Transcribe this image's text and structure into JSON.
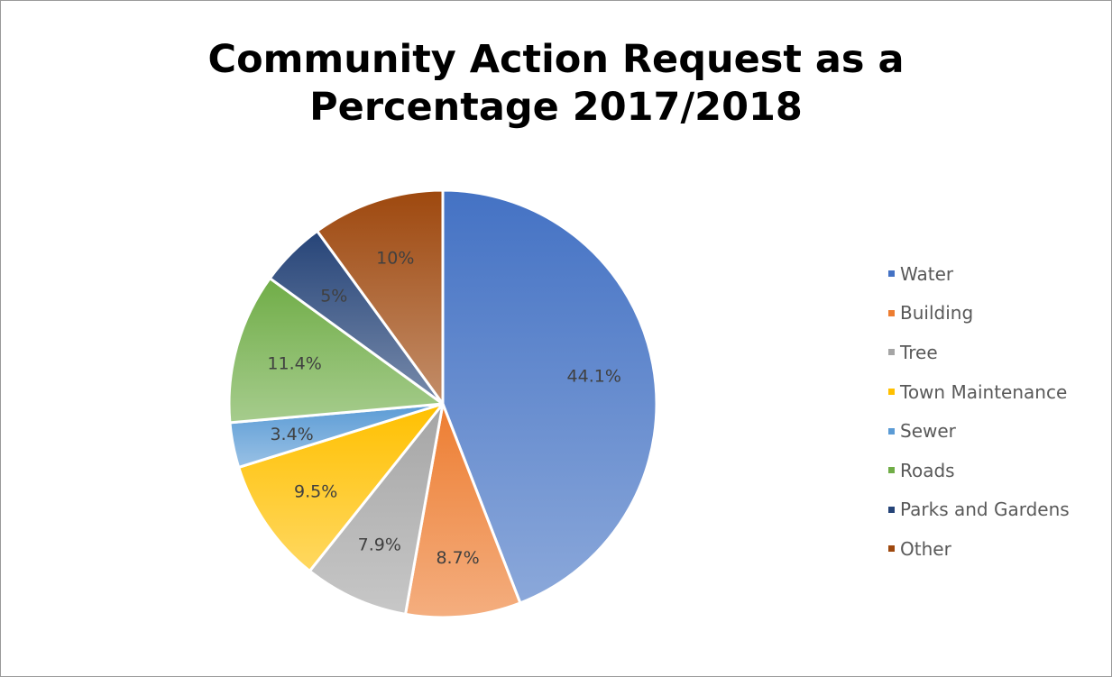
{
  "chart_data": {
    "type": "pie",
    "title": "Community Action Request as a Percentage 2017/2018",
    "title_lines": [
      "Community Action Request as a",
      "Percentage 2017/2018"
    ],
    "categories": [
      "Water",
      "Building",
      "Tree",
      "Town Maintenance",
      "Sewer",
      "Roads",
      "Parks and Gardens",
      "Other"
    ],
    "values": [
      44.1,
      8.7,
      7.9,
      9.5,
      3.4,
      11.4,
      5,
      10
    ],
    "data_labels": [
      "44.1%",
      "8.7%",
      "7.9%",
      "9.5%",
      "3.4%",
      "11.4%",
      "5%",
      "10%"
    ],
    "colors": [
      "#4472C4",
      "#ED7D31",
      "#A5A5A5",
      "#FFC000",
      "#5B9BD5",
      "#70AD47",
      "#264478",
      "#9E480E"
    ],
    "legend_position": "right"
  }
}
